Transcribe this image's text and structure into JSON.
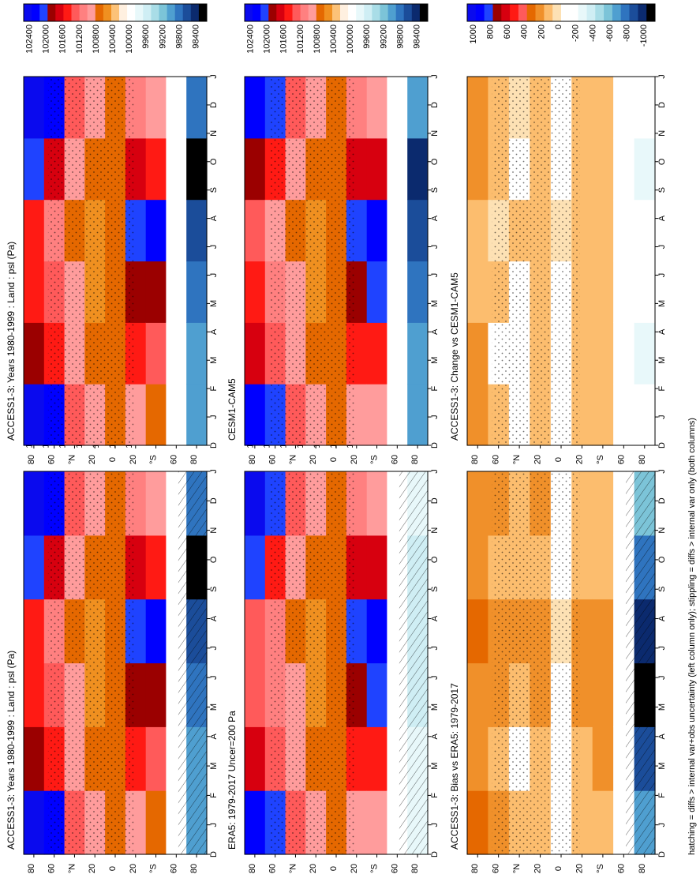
{
  "footer": "hatching = diffs > internal var+obs uncertainty (left column only); stippling = diffs > internal var only (both columns)",
  "month_labels": [
    "D",
    "J",
    "F",
    "M",
    "A",
    "M",
    "J",
    "J",
    "A",
    "S",
    "O",
    "N",
    "D",
    "J"
  ],
  "lat_labels": [
    "80",
    "60",
    "°N",
    "20",
    "0",
    "20",
    "°S",
    "60",
    "80"
  ],
  "colorbars": {
    "absolute": {
      "tick_labels": [
        "102400",
        "102000",
        "101600",
        "101200",
        "100800",
        "100400",
        "100000",
        "99600",
        "99200",
        "98800",
        "98400"
      ],
      "colors": [
        "#0a0aee",
        "#0000ff",
        "#1f43ff",
        "#9b0000",
        "#d7000f",
        "#ff1a14",
        "#ff5a5a",
        "#ff8080",
        "#ff9c9c",
        "#e56800",
        "#f09020",
        "#fcc278",
        "#fff0e0",
        "#ffffff",
        "#e8f8fa",
        "#cfeef4",
        "#a9dde7",
        "#7cc4d8",
        "#4f9fd0",
        "#2f74bf",
        "#1b4d9a",
        "#0b2a6e",
        "#000000"
      ]
    },
    "difference": {
      "tick_labels": [
        "1000",
        "800",
        "600",
        "400",
        "200",
        "0",
        "-200",
        "-400",
        "-600",
        "-800",
        "-1000"
      ],
      "colors": [
        "#0a0aee",
        "#0000ff",
        "#1f43ff",
        "#9b0000",
        "#d7000f",
        "#ff1a14",
        "#ff5a5a",
        "#e56800",
        "#f0902a",
        "#fcbd6e",
        "#fde1b4",
        "#ffffff",
        "#ffffff",
        "#e8f8fa",
        "#cfeef4",
        "#a9dde7",
        "#7cc4d8",
        "#4f9fd0",
        "#2f74bf",
        "#1b4d9a",
        "#0b2a6e",
        "#000000"
      ]
    }
  },
  "panels": [
    {
      "title": "ACCESS1-3: Years 1980-1999 : Land : psl (Pa)",
      "colorbar": "absolute",
      "hatching": true
    },
    {
      "title": "",
      "colorbar": "absolute",
      "hatching": false
    },
    {
      "title": "ERA5: 1979-2017 Uncer=200 Pa",
      "colorbar": "absolute",
      "hatching": true
    },
    {
      "title": "CESM1-CAM5",
      "colorbar": "absolute",
      "hatching": false
    },
    {
      "title": "ACCESS1-3: Bias vs ERA5: 1979-2017",
      "colorbar": "difference",
      "hatching": true
    },
    {
      "title": "ACCESS1-3: Change vs CESM1-CAM5",
      "colorbar": "difference",
      "hatching": false
    }
  ],
  "chart_data": [
    {
      "type": "heatmap",
      "title": "ACCESS1-3: Years 1980-1999 : Land : psl (Pa)",
      "x_axis": "month (D,J,F,...,D,J)",
      "y_axis": "latitude (80°N to 80°S)",
      "zlim": [
        98400,
        102400
      ],
      "units": "Pa",
      "rows_lat": [
        80,
        60,
        40,
        20,
        0,
        -20,
        -40,
        -60,
        -80
      ],
      "cols_month": [
        "J",
        "M",
        "M",
        "J",
        "S",
        "N"
      ],
      "values": [
        [
          102400,
          101800,
          101400,
          101400,
          102000,
          102400
        ],
        [
          102200,
          101400,
          101200,
          101100,
          101600,
          102200
        ],
        [
          101200,
          101000,
          100900,
          100800,
          101000,
          101300
        ],
        [
          100900,
          100700,
          100600,
          100600,
          100700,
          100900
        ],
        [
          100800,
          100800,
          100800,
          100800,
          100800,
          100800
        ],
        [
          101000,
          101400,
          101800,
          102000,
          101600,
          101100
        ],
        [
          100800,
          101300,
          101800,
          102100,
          101500,
          100900
        ],
        [
          100000,
          100000,
          100000,
          100000,
          100000,
          100000
        ],
        [
          99200,
          99200,
          99000,
          98900,
          98500,
          99000
        ]
      ]
    },
    {
      "type": "heatmap",
      "title": "ERA5: 1979-2017 Uncer=200 Pa",
      "x_axis": "month (D,J,F,...,D,J)",
      "y_axis": "latitude (80°N to 80°S)",
      "zlim": [
        98400,
        102400
      ],
      "units": "Pa",
      "rows_lat": [
        80,
        60,
        40,
        20,
        0,
        -20,
        -40,
        -60,
        -80
      ],
      "cols_month": [
        "J",
        "M",
        "M",
        "J",
        "S",
        "N"
      ],
      "values": [
        [
          102200,
          101600,
          101200,
          101300,
          101900,
          102300
        ],
        [
          102000,
          101300,
          101100,
          101100,
          101500,
          102000
        ],
        [
          101200,
          101000,
          100900,
          100800,
          101000,
          101300
        ],
        [
          100900,
          100700,
          100600,
          100600,
          100700,
          100900
        ],
        [
          100800,
          100800,
          100800,
          100800,
          100800,
          100800
        ],
        [
          101000,
          101400,
          101800,
          102000,
          101600,
          101100
        ],
        [
          100900,
          101400,
          101900,
          102200,
          101600,
          101000
        ],
        [
          100000,
          100000,
          100000,
          100000,
          100000,
          100000
        ],
        [
          99800,
          99800,
          99700,
          99700,
          99700,
          99800
        ]
      ]
    },
    {
      "type": "heatmap",
      "title": "ACCESS1-3: Bias vs ERA5: 1979-2017",
      "x_axis": "month (D,J,F,...,D,J)",
      "y_axis": "latitude (80°N to 80°S)",
      "zlim": [
        -1000,
        1000
      ],
      "units": "Pa",
      "rows_lat": [
        80,
        60,
        40,
        20,
        0,
        -20,
        -40,
        -60,
        -80
      ],
      "cols_month": [
        "J",
        "M",
        "M",
        "J",
        "S",
        "N"
      ],
      "values": [
        [
          300,
          200,
          200,
          300,
          200,
          200
        ],
        [
          200,
          150,
          200,
          200,
          150,
          250
        ],
        [
          100,
          0,
          150,
          200,
          100,
          150
        ],
        [
          150,
          100,
          200,
          200,
          150,
          200
        ],
        [
          0,
          -50,
          0,
          50,
          0,
          0
        ],
        [
          100,
          150,
          200,
          200,
          100,
          100
        ],
        [
          150,
          200,
          250,
          200,
          150,
          150
        ],
        [
          0,
          0,
          0,
          0,
          0,
          0
        ],
        [
          -600,
          -800,
          -1000,
          -900,
          -700,
          -500
        ]
      ]
    },
    {
      "type": "heatmap",
      "title": "CESM1-CAM5",
      "x_axis": "month (D,J,F,...,D,J)",
      "y_axis": "latitude (80°N to 80°S)",
      "zlim": [
        98400,
        102400
      ],
      "units": "Pa",
      "rows_lat": [
        80,
        60,
        40,
        20,
        0,
        -20,
        -40,
        -60,
        -80
      ],
      "cols_month": [
        "J",
        "M",
        "M",
        "J",
        "S",
        "N"
      ],
      "values": [
        [
          102200,
          101600,
          101400,
          101300,
          101800,
          102200
        ],
        [
          102000,
          101300,
          101100,
          101000,
          101500,
          102000
        ],
        [
          101300,
          101000,
          100900,
          100800,
          101000,
          101300
        ],
        [
          100900,
          100700,
          100600,
          100600,
          100700,
          100900
        ],
        [
          100800,
          100800,
          100800,
          100800,
          100800,
          100800
        ],
        [
          101000,
          101400,
          101800,
          102000,
          101600,
          101100
        ],
        [
          100900,
          101400,
          101900,
          102200,
          101600,
          101000
        ],
        [
          100000,
          100000,
          100000,
          100000,
          100000,
          100000
        ],
        [
          99200,
          99200,
          99000,
          98900,
          98600,
          99100
        ]
      ]
    },
    {
      "type": "heatmap",
      "title": "ACCESS1-3: Change vs CESM1-CAM5",
      "x_axis": "month (D,J,F,...,D,J)",
      "y_axis": "latitude (80°N to 80°S)",
      "zlim": [
        -1000,
        1000
      ],
      "units": "Pa",
      "rows_lat": [
        80,
        60,
        40,
        20,
        0,
        -20,
        -40,
        -60,
        -80
      ],
      "cols_month": [
        "J",
        "M",
        "M",
        "J",
        "S",
        "N"
      ],
      "values": [
        [
          200,
          200,
          100,
          100,
          200,
          200
        ],
        [
          100,
          0,
          100,
          50,
          100,
          150
        ],
        [
          0,
          -100,
          0,
          100,
          0,
          50
        ],
        [
          150,
          100,
          150,
          150,
          100,
          150
        ],
        [
          0,
          0,
          0,
          50,
          0,
          0
        ],
        [
          100,
          100,
          150,
          150,
          100,
          100
        ],
        [
          100,
          100,
          150,
          100,
          100,
          100
        ],
        [
          0,
          0,
          0,
          0,
          0,
          0
        ],
        [
          -100,
          -200,
          -100,
          -100,
          -200,
          -100
        ]
      ]
    }
  ]
}
